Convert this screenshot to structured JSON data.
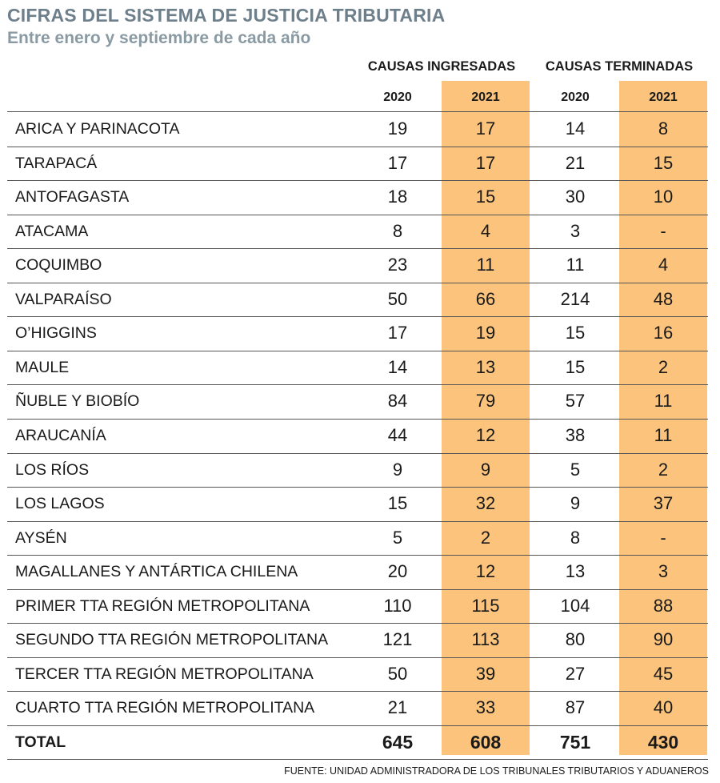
{
  "title": "CIFRAS DEL SISTEMA DE JUSTICIA TRIBUTARIA",
  "subtitle": "Entre enero y septiembre de cada año",
  "chart_data": {
    "type": "table",
    "groups": [
      "CAUSAS INGRESADAS",
      "CAUSAS TERMINADAS"
    ],
    "years": [
      "2020",
      "2021",
      "2020",
      "2021"
    ],
    "highlight_color": "#fbc37c",
    "rows": [
      {
        "name": "ARICA Y PARINACOTA",
        "values": [
          "19",
          "17",
          "14",
          "8"
        ]
      },
      {
        "name": "TARAPACÁ",
        "values": [
          "17",
          "17",
          "21",
          "15"
        ]
      },
      {
        "name": "ANTOFAGASTA",
        "values": [
          "18",
          "15",
          "30",
          "10"
        ]
      },
      {
        "name": "ATACAMA",
        "values": [
          "8",
          "4",
          "3",
          "-"
        ]
      },
      {
        "name": "COQUIMBO",
        "values": [
          "23",
          "11",
          "11",
          "4"
        ]
      },
      {
        "name": "VALPARAÍSO",
        "values": [
          "50",
          "66",
          "214",
          "48"
        ]
      },
      {
        "name": "O’HIGGINS",
        "values": [
          "17",
          "19",
          "15",
          "16"
        ]
      },
      {
        "name": "MAULE",
        "values": [
          "14",
          "13",
          "15",
          "2"
        ]
      },
      {
        "name": "ÑUBLE Y BIOBÍO",
        "values": [
          "84",
          "79",
          "57",
          "11"
        ]
      },
      {
        "name": "ARAUCANÍA",
        "values": [
          "44",
          "12",
          "38",
          "11"
        ]
      },
      {
        "name": "LOS RÍOS",
        "values": [
          "9",
          "9",
          "5",
          "2"
        ]
      },
      {
        "name": "LOS LAGOS",
        "values": [
          "15",
          "32",
          "9",
          "37"
        ]
      },
      {
        "name": "AYSÉN",
        "values": [
          "5",
          "2",
          "8",
          "-"
        ]
      },
      {
        "name": "MAGALLANES Y ANTÁRTICA CHILENA",
        "values": [
          "20",
          "12",
          "13",
          "3"
        ]
      },
      {
        "name": "PRIMER TTA REGIÓN METROPOLITANA",
        "values": [
          "110",
          "115",
          "104",
          "88"
        ]
      },
      {
        "name": "SEGUNDO TTA REGIÓN METROPOLITANA",
        "values": [
          "121",
          "113",
          "80",
          "90"
        ]
      },
      {
        "name": "TERCER TTA REGIÓN METROPOLITANA",
        "values": [
          "50",
          "39",
          "27",
          "45"
        ]
      },
      {
        "name": "CUARTO TTA REGIÓN METROPOLITANA",
        "values": [
          "21",
          "33",
          "87",
          "40"
        ]
      }
    ],
    "total": {
      "name": "TOTAL",
      "values": [
        "645",
        "608",
        "751",
        "430"
      ]
    }
  },
  "source": "FUENTE: UNIDAD ADMINISTRADORA DE LOS TRIBUNALES TRIBUTARIOS Y ADUANEROS"
}
